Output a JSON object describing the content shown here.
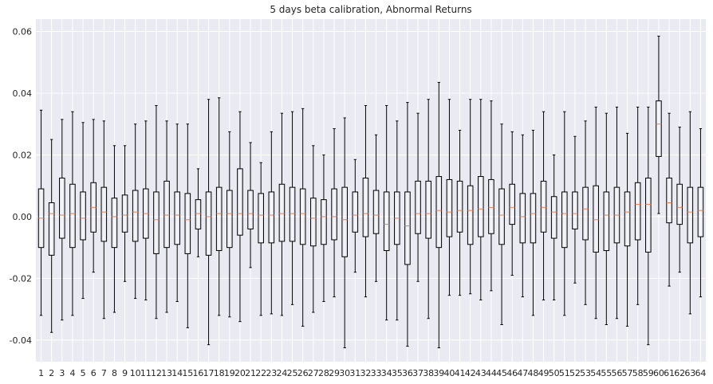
{
  "colors": {
    "plot_background": "#eaeaf2",
    "grid": "#ffffff",
    "box": "#000000",
    "median": "#e8825a"
  },
  "chart_data": {
    "type": "boxplot",
    "title": "5 days beta calibration, Abnormal Returns",
    "xlabel": "",
    "ylabel": "",
    "ylim": [
      -0.047,
      0.064
    ],
    "yticks": [
      -0.04,
      -0.02,
      0.0,
      0.02,
      0.04,
      0.06
    ],
    "ytick_labels": [
      "-0.04",
      "-0.02",
      "0.00",
      "0.02",
      "0.04",
      "0.06"
    ],
    "grid": true,
    "categories": [
      "1",
      "2",
      "3",
      "4",
      "5",
      "6",
      "7",
      "8",
      "9",
      "10",
      "11",
      "12",
      "13",
      "14",
      "15",
      "16",
      "17",
      "18",
      "19",
      "20",
      "21",
      "22",
      "23",
      "24",
      "25",
      "26",
      "27",
      "28",
      "29",
      "30",
      "31",
      "32",
      "33",
      "34",
      "35",
      "36",
      "37",
      "38",
      "39",
      "40",
      "41",
      "42",
      "43",
      "44",
      "45",
      "46",
      "47",
      "48",
      "49",
      "50",
      "51",
      "52",
      "53",
      "54",
      "55",
      "56",
      "57",
      "58",
      "59",
      "60",
      "61",
      "62",
      "63",
      "64"
    ],
    "boxes": [
      {
        "whislo": -0.032,
        "q1": -0.01,
        "med": -0.0005,
        "q3": 0.009,
        "whishi": 0.0345
      },
      {
        "whislo": -0.0375,
        "q1": -0.0125,
        "med": 0.001,
        "q3": 0.0045,
        "whishi": 0.025
      },
      {
        "whislo": -0.0335,
        "q1": -0.007,
        "med": 0.0005,
        "q3": 0.0125,
        "whishi": 0.0315
      },
      {
        "whislo": -0.032,
        "q1": -0.01,
        "med": 0.001,
        "q3": 0.0105,
        "whishi": 0.034
      },
      {
        "whislo": -0.0265,
        "q1": -0.0075,
        "med": -0.0005,
        "q3": 0.008,
        "whishi": 0.0305
      },
      {
        "whislo": -0.018,
        "q1": -0.005,
        "med": 0.003,
        "q3": 0.011,
        "whishi": 0.0315
      },
      {
        "whislo": -0.033,
        "q1": -0.008,
        "med": 0.0015,
        "q3": 0.0095,
        "whishi": 0.031
      },
      {
        "whislo": -0.031,
        "q1": -0.01,
        "med": 0.0,
        "q3": 0.006,
        "whishi": 0.023
      },
      {
        "whislo": -0.021,
        "q1": -0.005,
        "med": 0.0005,
        "q3": 0.007,
        "whishi": 0.023
      },
      {
        "whislo": -0.0265,
        "q1": -0.008,
        "med": 0.0015,
        "q3": 0.0085,
        "whishi": 0.03
      },
      {
        "whislo": -0.027,
        "q1": -0.007,
        "med": 0.001,
        "q3": 0.009,
        "whishi": 0.031
      },
      {
        "whislo": -0.033,
        "q1": -0.012,
        "med": -0.001,
        "q3": 0.008,
        "whishi": 0.036
      },
      {
        "whislo": -0.031,
        "q1": -0.01,
        "med": 0.0005,
        "q3": 0.0115,
        "whishi": 0.031
      },
      {
        "whislo": -0.0275,
        "q1": -0.009,
        "med": 0.0005,
        "q3": 0.008,
        "whishi": 0.03
      },
      {
        "whislo": -0.036,
        "q1": -0.012,
        "med": -0.001,
        "q3": 0.0075,
        "whishi": 0.03
      },
      {
        "whislo": -0.013,
        "q1": -0.004,
        "med": 0.001,
        "q3": 0.0055,
        "whishi": 0.0155
      },
      {
        "whislo": -0.0415,
        "q1": -0.0125,
        "med": 0.0,
        "q3": 0.008,
        "whishi": 0.038
      },
      {
        "whislo": -0.032,
        "q1": -0.011,
        "med": 0.001,
        "q3": 0.0095,
        "whishi": 0.0385
      },
      {
        "whislo": -0.0325,
        "q1": -0.01,
        "med": 0.001,
        "q3": 0.0085,
        "whishi": 0.0275
      },
      {
        "whislo": -0.034,
        "q1": -0.006,
        "med": 0.001,
        "q3": 0.0155,
        "whishi": 0.034
      },
      {
        "whislo": -0.0165,
        "q1": -0.004,
        "med": 0.001,
        "q3": 0.0085,
        "whishi": 0.024
      },
      {
        "whislo": -0.032,
        "q1": -0.0085,
        "med": 0.0005,
        "q3": 0.0075,
        "whishi": 0.0175
      },
      {
        "whislo": -0.0315,
        "q1": -0.0085,
        "med": 0.0005,
        "q3": 0.008,
        "whishi": 0.0275
      },
      {
        "whislo": -0.032,
        "q1": -0.008,
        "med": 0.001,
        "q3": 0.0105,
        "whishi": 0.0335
      },
      {
        "whislo": -0.0285,
        "q1": -0.008,
        "med": 0.001,
        "q3": 0.0095,
        "whishi": 0.034
      },
      {
        "whislo": -0.0355,
        "q1": -0.009,
        "med": 0.001,
        "q3": 0.009,
        "whishi": 0.035
      },
      {
        "whislo": -0.031,
        "q1": -0.0095,
        "med": -0.0005,
        "q3": 0.006,
        "whishi": 0.023
      },
      {
        "whislo": -0.0275,
        "q1": -0.009,
        "med": 0.0,
        "q3": 0.0055,
        "whishi": 0.02
      },
      {
        "whislo": -0.026,
        "q1": -0.0075,
        "med": 0.0,
        "q3": 0.009,
        "whishi": 0.0285
      },
      {
        "whislo": -0.0425,
        "q1": -0.013,
        "med": -0.001,
        "q3": 0.0095,
        "whishi": 0.032
      },
      {
        "whislo": -0.018,
        "q1": -0.005,
        "med": 0.0005,
        "q3": 0.008,
        "whishi": 0.0185
      },
      {
        "whislo": -0.026,
        "q1": -0.0065,
        "med": 0.001,
        "q3": 0.0125,
        "whishi": 0.036
      },
      {
        "whislo": -0.021,
        "q1": -0.0055,
        "med": 0.0005,
        "q3": 0.0085,
        "whishi": 0.0265
      },
      {
        "whislo": -0.0335,
        "q1": -0.011,
        "med": -0.0025,
        "q3": 0.008,
        "whishi": 0.036
      },
      {
        "whislo": -0.0335,
        "q1": -0.009,
        "med": -0.0005,
        "q3": 0.008,
        "whishi": 0.031
      },
      {
        "whislo": -0.042,
        "q1": -0.0155,
        "med": -0.003,
        "q3": 0.008,
        "whishi": 0.037
      },
      {
        "whislo": -0.021,
        "q1": -0.0055,
        "med": 0.001,
        "q3": 0.0115,
        "whishi": 0.0335
      },
      {
        "whislo": -0.033,
        "q1": -0.007,
        "med": 0.001,
        "q3": 0.0115,
        "whishi": 0.038
      },
      {
        "whislo": -0.0425,
        "q1": -0.01,
        "med": 0.002,
        "q3": 0.013,
        "whishi": 0.0435
      },
      {
        "whislo": -0.0255,
        "q1": -0.0065,
        "med": 0.0015,
        "q3": 0.012,
        "whishi": 0.038
      },
      {
        "whislo": -0.0255,
        "q1": -0.005,
        "med": 0.002,
        "q3": 0.0115,
        "whishi": 0.028
      },
      {
        "whislo": -0.025,
        "q1": -0.009,
        "med": 0.002,
        "q3": 0.01,
        "whishi": 0.038
      },
      {
        "whislo": -0.027,
        "q1": -0.0065,
        "med": 0.0025,
        "q3": 0.013,
        "whishi": 0.038
      },
      {
        "whislo": -0.024,
        "q1": -0.0055,
        "med": 0.003,
        "q3": 0.012,
        "whishi": 0.0375
      },
      {
        "whislo": -0.035,
        "q1": -0.009,
        "med": 0.0005,
        "q3": 0.009,
        "whishi": 0.03
      },
      {
        "whislo": -0.019,
        "q1": -0.0025,
        "med": 0.003,
        "q3": 0.0105,
        "whishi": 0.0275
      },
      {
        "whislo": -0.026,
        "q1": -0.0085,
        "med": 0.0,
        "q3": 0.0075,
        "whishi": 0.0265
      },
      {
        "whislo": -0.032,
        "q1": -0.0085,
        "med": 0.001,
        "q3": 0.0075,
        "whishi": 0.028
      },
      {
        "whislo": -0.027,
        "q1": -0.005,
        "med": 0.003,
        "q3": 0.0115,
        "whishi": 0.034
      },
      {
        "whislo": -0.027,
        "q1": -0.007,
        "med": 0.0015,
        "q3": 0.0065,
        "whishi": 0.02
      },
      {
        "whislo": -0.032,
        "q1": -0.01,
        "med": 0.001,
        "q3": 0.008,
        "whishi": 0.034
      },
      {
        "whislo": -0.0215,
        "q1": -0.004,
        "med": 0.001,
        "q3": 0.008,
        "whishi": 0.026
      },
      {
        "whislo": -0.0285,
        "q1": -0.0075,
        "med": 0.0025,
        "q3": 0.0095,
        "whishi": 0.031
      },
      {
        "whislo": -0.033,
        "q1": -0.0115,
        "med": -0.001,
        "q3": 0.01,
        "whishi": 0.0355
      },
      {
        "whislo": -0.035,
        "q1": -0.011,
        "med": 0.0005,
        "q3": 0.008,
        "whishi": 0.0335
      },
      {
        "whislo": -0.033,
        "q1": -0.0085,
        "med": 0.0005,
        "q3": 0.0095,
        "whishi": 0.0355
      },
      {
        "whislo": -0.0355,
        "q1": -0.0095,
        "med": 0.0015,
        "q3": 0.008,
        "whishi": 0.027
      },
      {
        "whislo": -0.0285,
        "q1": -0.0075,
        "med": 0.004,
        "q3": 0.011,
        "whishi": 0.0355
      },
      {
        "whislo": -0.0415,
        "q1": -0.0115,
        "med": 0.004,
        "q3": 0.0125,
        "whishi": 0.0355
      },
      {
        "whislo": 0.001,
        "q1": 0.0195,
        "med": 0.03,
        "q3": 0.0375,
        "whishi": 0.0585
      },
      {
        "whislo": -0.0225,
        "q1": -0.002,
        "med": 0.0045,
        "q3": 0.0125,
        "whishi": 0.0335
      },
      {
        "whislo": -0.018,
        "q1": -0.0025,
        "med": 0.003,
        "q3": 0.0105,
        "whishi": 0.029
      },
      {
        "whislo": -0.0315,
        "q1": -0.0085,
        "med": 0.0015,
        "q3": 0.0095,
        "whishi": 0.034
      },
      {
        "whislo": -0.026,
        "q1": -0.0065,
        "med": 0.002,
        "q3": 0.0095,
        "whishi": 0.0285
      }
    ]
  }
}
